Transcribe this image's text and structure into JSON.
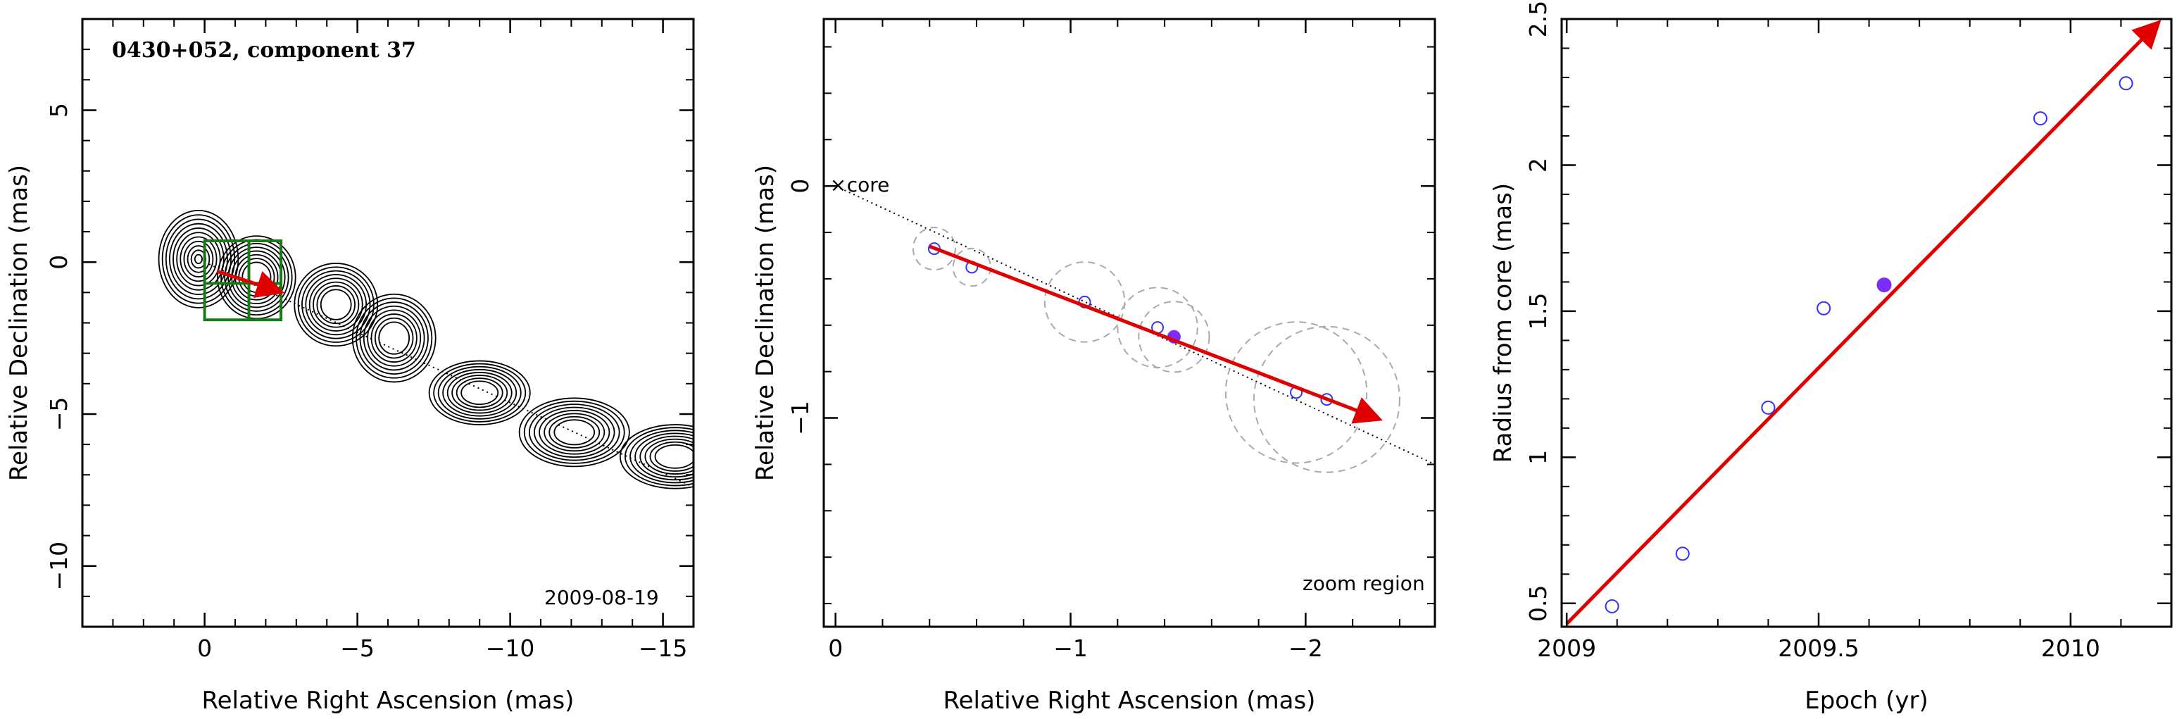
{
  "chart_data": [
    {
      "type": "contour",
      "title": "0430+052, component 37",
      "xlabel": "Relative Right Ascension (mas)",
      "ylabel": "Relative Declination (mas)",
      "xlim": [
        4,
        -16
      ],
      "ylim": [
        -12,
        8
      ],
      "xticks": [
        0,
        -5,
        -10,
        -15
      ],
      "yticks": [
        5,
        0,
        -5,
        -10
      ],
      "date_label": "2009-08-19",
      "core": [
        0,
        0
      ],
      "ridge_line": [
        [
          0,
          0
        ],
        [
          -16,
          -7.4
        ]
      ],
      "contour_peaks": [
        {
          "x": -1.7,
          "y": -0.6,
          "label": ""
        },
        {
          "x": -4.3,
          "y": -1.5
        },
        {
          "x": -6.2,
          "y": -2.4
        },
        {
          "x": -9.0,
          "y": -4.3
        },
        {
          "x": -12.1,
          "y": -5.7
        },
        {
          "x": -15.2,
          "y": -6.3
        }
      ],
      "zoom_box": {
        "x": [
          0,
          -2.5
        ],
        "y": [
          0.7,
          -1.9
        ]
      },
      "motion_arrow": {
        "from": [
          -0.4,
          -0.3
        ],
        "to": [
          -2.4,
          -0.95
        ]
      },
      "colors": {
        "contour": "#000000",
        "box": "#1a7a1a",
        "arrow": "#e00000"
      }
    },
    {
      "type": "scatter",
      "title": "",
      "xlabel": "Relative Right Ascension (mas)",
      "ylabel": "Relative Declination (mas)",
      "xlim": [
        0.05,
        -2.55
      ],
      "ylim": [
        -1.9,
        0.72
      ],
      "xticks": [
        0,
        -1,
        -2
      ],
      "yticks": [
        0,
        -1
      ],
      "core_label": "core",
      "region_label": "zoom region",
      "ridge_line": [
        [
          0,
          0
        ],
        [
          -2.55,
          -1.2
        ]
      ],
      "points": [
        {
          "x": -0.42,
          "y": -0.27,
          "r": 0.09
        },
        {
          "x": -0.58,
          "y": -0.35,
          "r": 0.08
        },
        {
          "x": -1.06,
          "y": -0.5,
          "r": 0.17
        },
        {
          "x": -1.37,
          "y": -0.61,
          "r": 0.17
        },
        {
          "x": -1.96,
          "y": -0.89,
          "r": 0.3
        },
        {
          "x": -2.09,
          "y": -0.92,
          "r": 0.31
        }
      ],
      "highlight_point": {
        "x": -1.44,
        "y": -0.65,
        "r": 0.15
      },
      "motion_arrow": {
        "from": [
          -0.4,
          -0.26
        ],
        "to": [
          -2.3,
          -1.0
        ]
      },
      "colors": {
        "points": "#3333ff",
        "highlight": "#7b2cff",
        "circles": "#aaaaaa",
        "arrow": "#e00000"
      }
    },
    {
      "type": "scatter",
      "title": "",
      "xlabel": "Epoch (yr)",
      "ylabel": "Radius from core (mas)",
      "xlim": [
        2008.99,
        2010.2
      ],
      "ylim": [
        0.42,
        2.5
      ],
      "xticks": [
        2009,
        2009.5,
        2010
      ],
      "xtick_labels": [
        "2009",
        "2009.5",
        "2010"
      ],
      "yticks": [
        0.5,
        1,
        1.5,
        2,
        2.5
      ],
      "ytick_labels": [
        "0.5",
        "1",
        "1.5",
        "2",
        "2.5"
      ],
      "points": [
        {
          "x": 2009.09,
          "y": 0.49
        },
        {
          "x": 2009.23,
          "y": 0.67
        },
        {
          "x": 2009.4,
          "y": 1.17
        },
        {
          "x": 2009.51,
          "y": 1.51
        },
        {
          "x": 2009.94,
          "y": 2.16
        },
        {
          "x": 2010.11,
          "y": 2.28
        }
      ],
      "highlight_point": {
        "x": 2009.63,
        "y": 1.59
      },
      "fit_line": {
        "from": [
          2009.0,
          0.43
        ],
        "to": [
          2010.17,
          2.48
        ]
      },
      "colors": {
        "points": "#3333ff",
        "highlight": "#7b2cff",
        "fit": "#e00000"
      }
    }
  ]
}
